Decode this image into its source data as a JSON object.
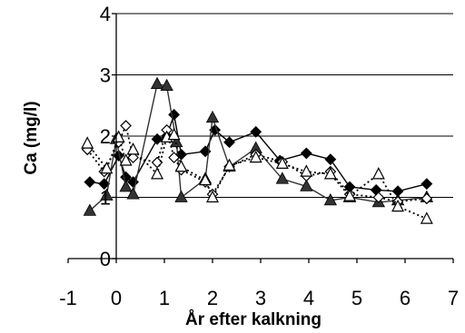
{
  "chart_data": {
    "type": "scatter",
    "xlabel": "År efter kalkning",
    "ylabel": "Ca (mg/l)",
    "xlim": [
      -1,
      7
    ],
    "ylim": [
      0,
      4
    ],
    "x_ticks": [
      "-1",
      "0",
      "1",
      "2",
      "3",
      "4",
      "5",
      "6",
      "7"
    ],
    "y_ticks": [
      "0",
      "1",
      "2",
      "3",
      "4"
    ],
    "grid": "horizontal",
    "legend": "none",
    "series": [
      {
        "marker": "filled-diamond",
        "line": "solid",
        "color": "#000000",
        "points": [
          [
            -0.55,
            1.25
          ],
          [
            -0.25,
            1.22
          ],
          [
            0.05,
            1.68
          ],
          [
            0.2,
            1.33
          ],
          [
            0.35,
            1.25
          ],
          [
            0.85,
            1.95
          ],
          [
            1.05,
            2.0
          ],
          [
            1.2,
            2.35
          ],
          [
            1.35,
            1.7
          ],
          [
            1.85,
            1.75
          ],
          [
            2.05,
            2.1
          ],
          [
            2.35,
            1.9
          ],
          [
            2.9,
            2.07
          ],
          [
            3.4,
            1.6
          ],
          [
            3.95,
            1.72
          ],
          [
            4.45,
            1.62
          ],
          [
            4.85,
            1.17
          ],
          [
            5.4,
            1.12
          ],
          [
            5.85,
            1.1
          ],
          [
            6.45,
            1.22
          ]
        ]
      },
      {
        "marker": "filled-triangle",
        "line": "solid",
        "color": "#333333",
        "points": [
          [
            -0.55,
            0.78
          ],
          [
            -0.2,
            1.03
          ],
          [
            0.0,
            1.95
          ],
          [
            0.2,
            1.17
          ],
          [
            0.35,
            1.05
          ],
          [
            0.85,
            2.85
          ],
          [
            1.05,
            2.82
          ],
          [
            1.25,
            1.9
          ],
          [
            1.35,
            1.0
          ],
          [
            1.85,
            1.3
          ],
          [
            2.0,
            2.3
          ],
          [
            2.35,
            1.5
          ],
          [
            2.9,
            1.8
          ],
          [
            3.45,
            1.3
          ],
          [
            3.95,
            1.18
          ],
          [
            4.45,
            0.95
          ],
          [
            4.85,
            1.0
          ],
          [
            5.45,
            0.92
          ],
          [
            5.85,
            0.95
          ],
          [
            6.45,
            1.0
          ]
        ]
      },
      {
        "marker": "open-diamond",
        "line": "dotted",
        "color": "#000000",
        "points": [
          [
            -0.6,
            1.78
          ],
          [
            -0.25,
            1.42
          ],
          [
            0.05,
            1.9
          ],
          [
            0.2,
            2.17
          ],
          [
            0.35,
            1.65
          ],
          [
            0.85,
            1.57
          ],
          [
            1.05,
            2.1
          ],
          [
            1.2,
            1.65
          ],
          [
            1.35,
            1.45
          ],
          [
            1.85,
            1.25
          ],
          [
            2.0,
            1.05
          ],
          [
            2.35,
            1.5
          ],
          [
            2.9,
            1.7
          ],
          [
            3.45,
            1.58
          ],
          [
            3.95,
            1.35
          ],
          [
            4.45,
            1.42
          ],
          [
            4.85,
            1.05
          ],
          [
            5.45,
            1.0
          ],
          [
            5.85,
            0.93
          ],
          [
            6.45,
            0.98
          ]
        ]
      },
      {
        "marker": "open-triangle",
        "line": "dotted",
        "color": "#000000",
        "points": [
          [
            -0.6,
            1.88
          ],
          [
            -0.2,
            1.47
          ],
          [
            0.05,
            1.98
          ],
          [
            0.2,
            1.6
          ],
          [
            0.35,
            1.78
          ],
          [
            0.85,
            1.38
          ],
          [
            1.05,
            1.98
          ],
          [
            1.2,
            2.02
          ],
          [
            1.35,
            1.5
          ],
          [
            1.85,
            1.28
          ],
          [
            2.0,
            1.0
          ],
          [
            2.35,
            1.52
          ],
          [
            2.9,
            1.65
          ],
          [
            3.45,
            1.55
          ],
          [
            3.95,
            1.42
          ],
          [
            4.45,
            1.38
          ],
          [
            4.85,
            1.02
          ],
          [
            5.45,
            1.38
          ],
          [
            5.85,
            0.85
          ],
          [
            6.45,
            0.65
          ]
        ]
      }
    ]
  }
}
